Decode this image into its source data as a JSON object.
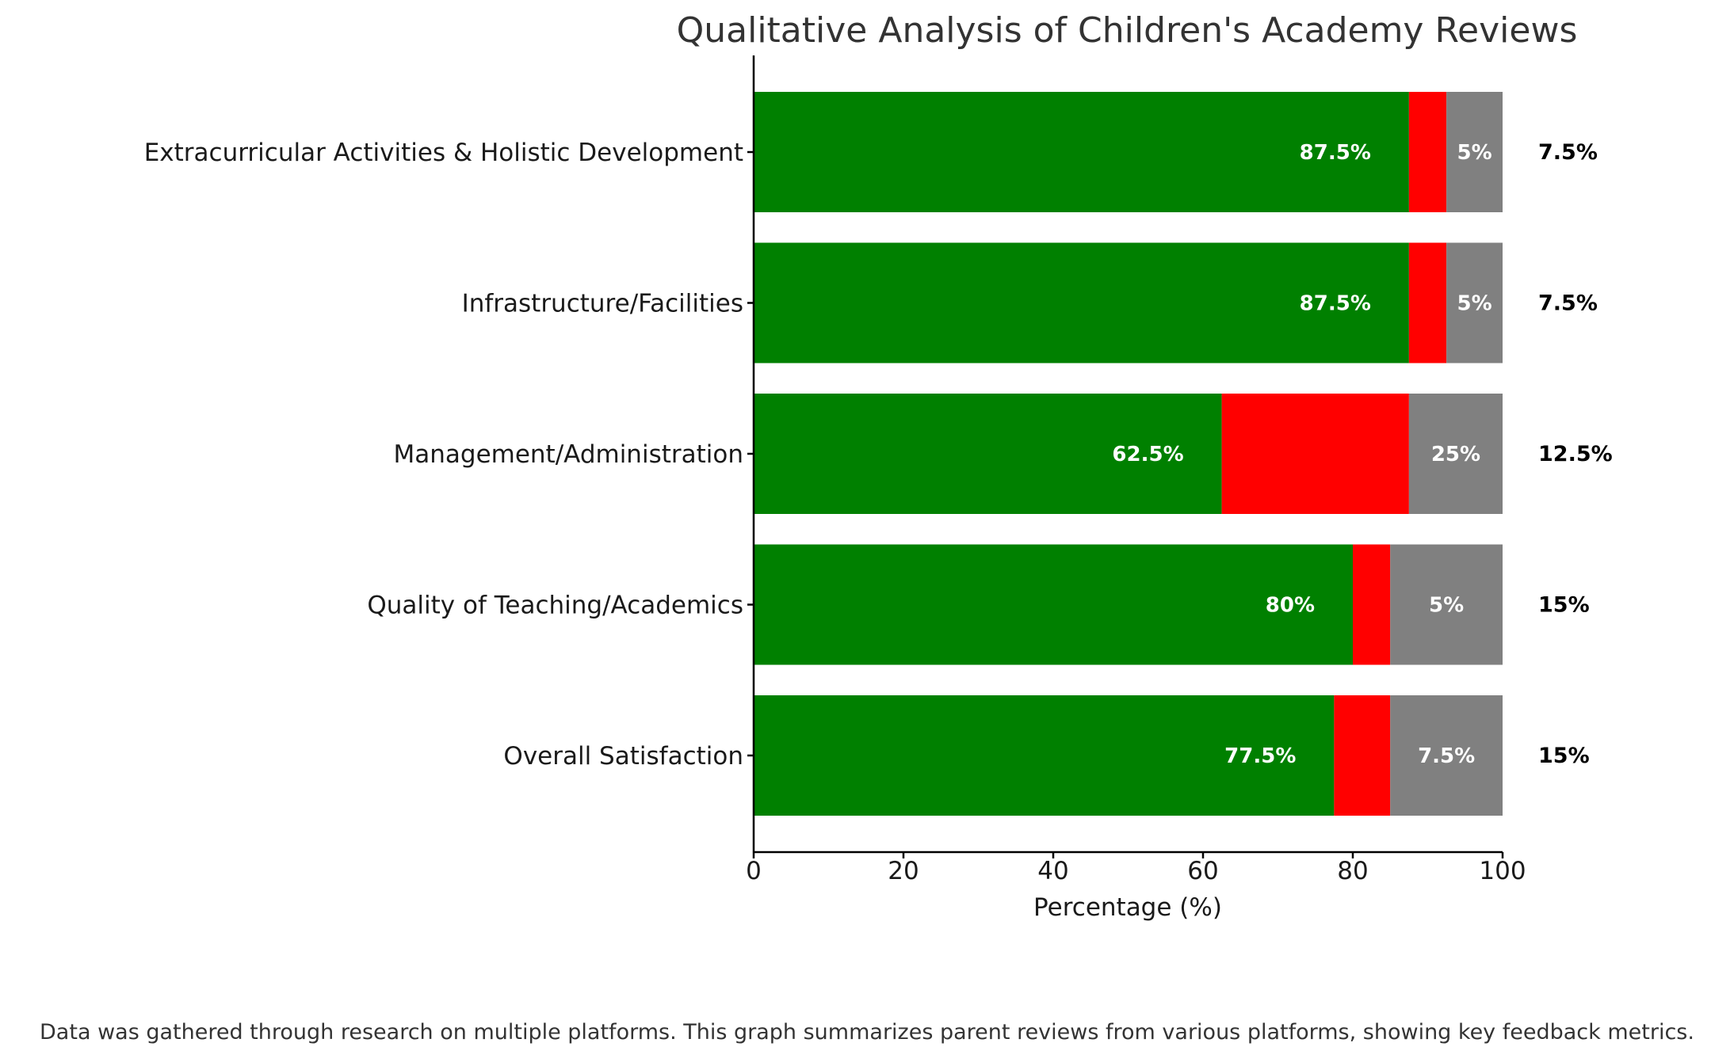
{
  "chart_data": {
    "type": "bar",
    "orientation": "horizontal",
    "stacked": true,
    "title": "Qualitative Analysis of Children's Academy Reviews",
    "xlabel": "Percentage (%)",
    "ylabel": "",
    "xlim": [
      0,
      100
    ],
    "xticks": [
      "0",
      "20",
      "40",
      "60",
      "80",
      "100"
    ],
    "grid": false,
    "categories": [
      "Extracurricular Activities & Holistic Development",
      "Infrastructure/Facilities",
      "Management/Administration",
      "Quality of Teaching/Academics",
      "Overall Satisfaction"
    ],
    "series": [
      {
        "color": "#008000",
        "values": [
          87.5,
          87.5,
          62.5,
          80,
          77.5
        ]
      },
      {
        "color": "#ff0000",
        "values": [
          5,
          5,
          25,
          5,
          7.5
        ]
      },
      {
        "color": "#808080",
        "values": [
          7.5,
          7.5,
          12.5,
          15,
          15
        ]
      }
    ],
    "bar_labels": [
      {
        "inside": [
          "87.5%",
          "5%"
        ],
        "outside": "7.5%"
      },
      {
        "inside": [
          "87.5%",
          "5%"
        ],
        "outside": "7.5%"
      },
      {
        "inside": [
          "62.5%",
          "25%"
        ],
        "outside": "12.5%"
      },
      {
        "inside": [
          "80%",
          "5%"
        ],
        "outside": "15%"
      },
      {
        "inside": [
          "77.5%",
          "7.5%"
        ],
        "outside": "15%"
      }
    ],
    "footnote": "Data was gathered through research on multiple platforms. This graph summarizes parent reviews from various platforms, showing key feedback metrics."
  }
}
